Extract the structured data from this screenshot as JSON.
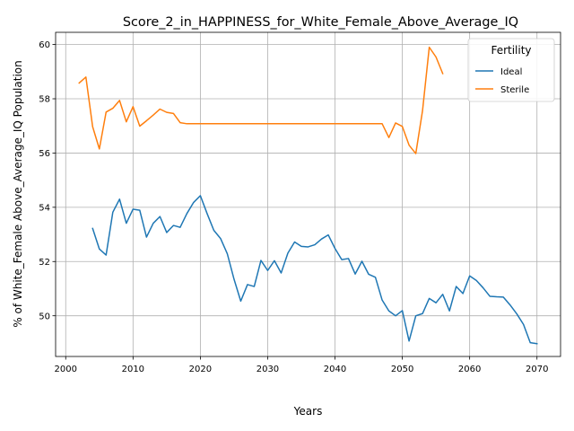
{
  "chart_data": {
    "type": "line",
    "title": "Score_2_in_HAPPINESS_for_White_Female_Above_Average_IQ",
    "xlabel": "Years",
    "ylabel": "% of White_Female Above_Average_IQ Population",
    "xlim": [
      1998.5,
      2073.5
    ],
    "ylim": [
      48.5,
      60.45
    ],
    "x_ticks": [
      2000,
      2010,
      2020,
      2030,
      2040,
      2050,
      2060,
      2070
    ],
    "y_ticks": [
      50,
      52,
      54,
      56,
      58,
      60
    ],
    "grid": true,
    "legend": {
      "title": "Fertility",
      "position": "top-right"
    },
    "series": [
      {
        "name": "Ideal",
        "color": "#1f77b4",
        "x": [
          2004,
          2005,
          2006,
          2007,
          2008,
          2009,
          2010,
          2011,
          2012,
          2013,
          2014,
          2015,
          2016,
          2017,
          2018,
          2019,
          2020,
          2021,
          2022,
          2023,
          2024,
          2025,
          2026,
          2027,
          2028,
          2029,
          2030,
          2031,
          2032,
          2033,
          2034,
          2035,
          2036,
          2037,
          2038,
          2039,
          2040,
          2041,
          2042,
          2043,
          2044,
          2045,
          2046,
          2047,
          2048,
          2049,
          2050,
          2051,
          2052,
          2053,
          2054,
          2055,
          2056,
          2057,
          2058,
          2059,
          2060,
          2061,
          2062,
          2063,
          2064,
          2065,
          2066,
          2067,
          2068,
          2069,
          2070
        ],
        "values": [
          53.22,
          52.46,
          52.24,
          53.82,
          54.3,
          53.41,
          53.93,
          53.89,
          52.9,
          53.41,
          53.66,
          53.07,
          53.33,
          53.26,
          53.77,
          54.18,
          54.43,
          53.77,
          53.15,
          52.85,
          52.29,
          51.35,
          50.54,
          51.15,
          51.08,
          52.04,
          51.67,
          52.03,
          51.58,
          52.31,
          52.72,
          52.56,
          52.54,
          52.62,
          52.83,
          52.98,
          52.48,
          52.07,
          52.11,
          51.54,
          52.01,
          51.53,
          51.42,
          50.58,
          50.18,
          50.0,
          50.19,
          49.07,
          50.0,
          50.08,
          50.64,
          50.48,
          50.79,
          50.18,
          51.08,
          50.82,
          51.47,
          51.3,
          51.03,
          50.72,
          50.7,
          50.69,
          50.4,
          50.07,
          49.68,
          49.01,
          48.97
        ]
      },
      {
        "name": "Sterile",
        "color": "#ff7f0e",
        "x": [
          2002,
          2003,
          2004,
          2005,
          2006,
          2007,
          2008,
          2009,
          2010,
          2011,
          2012,
          2013,
          2014,
          2015,
          2016,
          2017,
          2018,
          2019,
          2020,
          2021,
          2022,
          2023,
          2024,
          2025,
          2026,
          2027,
          2028,
          2029,
          2030,
          2031,
          2032,
          2033,
          2034,
          2035,
          2036,
          2037,
          2038,
          2039,
          2040,
          2041,
          2042,
          2043,
          2044,
          2045,
          2046,
          2047,
          2048,
          2049,
          2050,
          2051,
          2052,
          2053,
          2054,
          2055,
          2056
        ],
        "values": [
          58.58,
          58.8,
          56.97,
          56.15,
          57.51,
          57.65,
          57.94,
          57.15,
          57.71,
          56.99,
          57.19,
          57.4,
          57.62,
          57.5,
          57.46,
          57.12,
          57.08,
          57.08,
          57.08,
          57.08,
          57.08,
          57.08,
          57.08,
          57.08,
          57.08,
          57.08,
          57.08,
          57.08,
          57.08,
          57.08,
          57.08,
          57.08,
          57.08,
          57.08,
          57.08,
          57.08,
          57.08,
          57.08,
          57.08,
          57.08,
          57.08,
          57.08,
          57.08,
          57.08,
          57.08,
          57.08,
          56.57,
          57.11,
          56.98,
          56.29,
          55.98,
          57.56,
          59.9,
          59.54,
          58.93
        ]
      }
    ]
  }
}
